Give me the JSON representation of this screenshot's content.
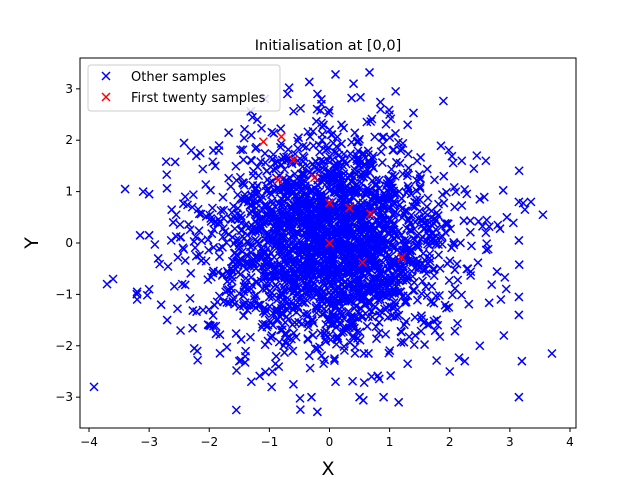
{
  "chart_data": {
    "type": "scatter",
    "title": "Initialisation at [0,0]",
    "xlabel": "X",
    "ylabel": "Y",
    "xlim": [
      -4.15,
      4.1
    ],
    "ylim": [
      -3.6,
      3.6
    ],
    "xticks": [
      -4,
      -3,
      -2,
      -1,
      0,
      1,
      2,
      3,
      4
    ],
    "yticks": [
      -3,
      -2,
      -1,
      0,
      1,
      2,
      3
    ],
    "xtick_labels": [
      "−4",
      "−3",
      "−2",
      "−1",
      "0",
      "1",
      "2",
      "3",
      "4"
    ],
    "ytick_labels": [
      "−3",
      "−2",
      "−1",
      "0",
      "1",
      "2",
      "3"
    ],
    "grid": false,
    "legend": {
      "placement": "top-left"
    },
    "marker": "x",
    "series": [
      {
        "name": "Other samples",
        "color": "#0000ff",
        "distribution": "bivariate standard normal",
        "count": 2500,
        "points": [
          [
            0.1,
            3.28
          ],
          [
            -0.2,
            2.9
          ],
          [
            -0.7,
            2.9
          ],
          [
            0.4,
            3.1
          ],
          [
            1.1,
            2.95
          ],
          [
            -3.7,
            -0.8
          ],
          [
            -3.6,
            -0.7
          ],
          [
            -3.4,
            1.05
          ],
          [
            -3.2,
            -0.95
          ],
          [
            -3.2,
            -1.1
          ],
          [
            -3.15,
            0.15
          ],
          [
            -3.1,
            1.0
          ],
          [
            -3.0,
            0.95
          ],
          [
            -3.0,
            0.15
          ],
          [
            -3.0,
            -0.9
          ],
          [
            -2.8,
            -1.2
          ],
          [
            -2.85,
            -0.3
          ],
          [
            -2.7,
            -1.5
          ],
          [
            -2.6,
            0.4
          ],
          [
            -2.55,
            0.55
          ],
          [
            -2.3,
            1.8
          ],
          [
            -2.25,
            -2.05
          ],
          [
            -2.2,
            -2.1
          ],
          [
            -2.15,
            1.75
          ],
          [
            -1.55,
            -3.25
          ],
          [
            -1.3,
            -2.7
          ],
          [
            -1.2,
            2.4
          ],
          [
            -0.95,
            -2.5
          ],
          [
            -0.6,
            -2.75
          ],
          [
            -0.3,
            -3.0
          ],
          [
            0.5,
            -3.0
          ],
          [
            0.7,
            -2.6
          ],
          [
            0.9,
            -3.0
          ],
          [
            1.15,
            -3.1
          ],
          [
            0.85,
            2.6
          ],
          [
            1.0,
            2.5
          ],
          [
            2.0,
            -2.5
          ],
          [
            2.25,
            -2.3
          ],
          [
            2.5,
            -2.0
          ],
          [
            2.9,
            -1.8
          ],
          [
            3.15,
            -3.0
          ],
          [
            3.2,
            -2.3
          ],
          [
            3.7,
            -2.15
          ],
          [
            3.15,
            -1.4
          ],
          [
            3.15,
            -1.05
          ],
          [
            2.85,
            -1.1
          ],
          [
            3.15,
            0.05
          ],
          [
            3.15,
            0.8
          ],
          [
            3.25,
            0.65
          ],
          [
            3.35,
            0.8
          ],
          [
            3.55,
            0.55
          ],
          [
            2.95,
            0.5
          ],
          [
            2.8,
            0.35
          ],
          [
            2.6,
            1.6
          ],
          [
            2.5,
            0.85
          ],
          [
            2.45,
            1.7
          ],
          [
            2.2,
            1.6
          ],
          [
            -0.1,
            2.3
          ],
          [
            0.2,
            2.3
          ],
          [
            1.3,
            2.3
          ],
          [
            -1.3,
            2.1
          ],
          [
            1.9,
            1.3
          ],
          [
            2.1,
            1.0
          ],
          [
            2.3,
            -0.5
          ],
          [
            1.8,
            -1.6
          ],
          [
            -1.9,
            1.5
          ],
          [
            -2.0,
            -1.6
          ],
          [
            -1.5,
            -2.3
          ],
          [
            -0.9,
            -2.35
          ],
          [
            0.1,
            -2.7
          ],
          [
            1.3,
            -2.35
          ],
          [
            -2.4,
            0.9
          ],
          [
            -2.45,
            -0.8
          ],
          [
            2.6,
            0.2
          ]
        ]
      },
      {
        "name": "First twenty samples",
        "color": "#ff0000",
        "points": [
          [
            -1.1,
            1.97
          ],
          [
            -0.8,
            2.07
          ],
          [
            -0.6,
            1.62
          ],
          [
            -0.85,
            1.23
          ],
          [
            -0.25,
            1.27
          ],
          [
            0.0,
            0.78
          ],
          [
            0.33,
            0.68
          ],
          [
            0.68,
            0.57
          ],
          [
            0.0,
            0.0
          ],
          [
            0.55,
            -0.38
          ],
          [
            1.2,
            -0.28
          ]
        ]
      }
    ]
  }
}
